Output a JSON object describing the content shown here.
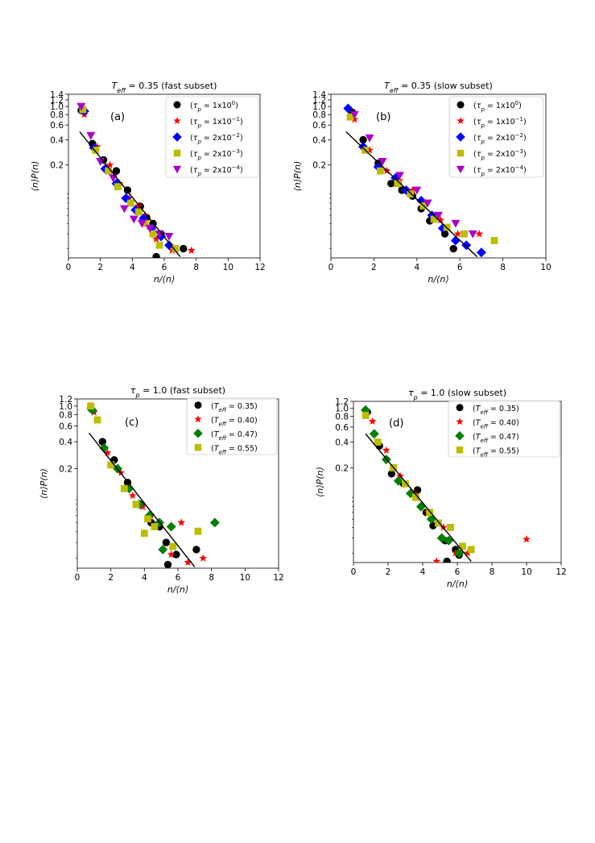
{
  "chart_data": [
    {
      "type": "scatter",
      "title": "T_eff = 0.35 (fast subset)",
      "title_parts": [
        "T",
        "eff",
        " = 0.35 (fast subset)"
      ],
      "panel_label": "(a)",
      "xlabel": "n/⟨n⟩",
      "ylabel": "⟨n⟩P(n)",
      "xlim": [
        0,
        12
      ],
      "ylim": [
        0.0155,
        1.4
      ],
      "yscale": "log",
      "xticks": [
        0,
        2,
        4,
        6,
        8,
        10,
        12
      ],
      "xticklabels": [
        "0",
        "2",
        "4",
        "6",
        "8",
        "10",
        "12"
      ],
      "yticks": [
        0.2,
        0.4,
        0.6,
        0.8,
        1.0,
        1.2,
        1.4
      ],
      "yticklabels": [
        "0.2",
        "0.4",
        "0.6",
        "0.8",
        "1.0",
        "1.2",
        "1.4"
      ],
      "legend_position": "top-right",
      "fit_line": {
        "x": [
          0.7,
          7.0
        ],
        "y": [
          0.5,
          0.016
        ]
      },
      "series": [
        {
          "name": "(τp=1x10^0)",
          "legend": [
            "(",
            "τ",
            "p",
            " = 1x10",
            "0",
            ")"
          ],
          "marker": "circle",
          "color": "#000000",
          "x": [
            0.8,
            1.5,
            2.2,
            3.0,
            3.7,
            4.5,
            4.9,
            5.3,
            5.8,
            7.2,
            5.5
          ],
          "y": [
            0.9,
            0.36,
            0.23,
            0.17,
            0.1,
            0.064,
            0.047,
            0.04,
            0.03,
            0.02,
            0.016
          ]
        },
        {
          "name": "(τp=1x10^-1)",
          "legend": [
            "(",
            "τ",
            "p",
            " = 1x10",
            "−1",
            ")"
          ],
          "marker": "star",
          "color": "#ff0000",
          "x": [
            1.0,
            1.8,
            2.6,
            3.2,
            3.8,
            4.4,
            4.8,
            5.2,
            5.5,
            6.5,
            7.7
          ],
          "y": [
            0.8,
            0.33,
            0.2,
            0.12,
            0.08,
            0.065,
            0.05,
            0.034,
            0.026,
            0.019,
            0.019
          ]
        },
        {
          "name": "(τp=2x10^-2)",
          "legend": [
            "(",
            "τ",
            "p",
            " = 2x10",
            "−2",
            ")"
          ],
          "marker": "diamond",
          "color": "#0000ff",
          "x": [
            1.0,
            1.6,
            2.3,
            3.0,
            3.6,
            4.2,
            4.7,
            5.2,
            5.8,
            6.3
          ],
          "y": [
            0.88,
            0.32,
            0.18,
            0.12,
            0.08,
            0.058,
            0.046,
            0.035,
            0.028,
            0.022
          ]
        },
        {
          "name": "(τp=2x10^-3)",
          "legend": [
            "(",
            "τ",
            "p",
            " = 2x10",
            "−3",
            ")"
          ],
          "marker": "square",
          "color": "#bcbd00",
          "x": [
            0.9,
            1.7,
            2.5,
            3.1,
            3.9,
            4.4,
            4.8,
            5.3,
            5.7,
            6.7
          ],
          "y": [
            0.92,
            0.3,
            0.17,
            0.11,
            0.07,
            0.055,
            0.04,
            0.03,
            0.022,
            0.02
          ]
        },
        {
          "name": "(τp=2x10^-4)",
          "legend": [
            "(",
            "τ",
            "p",
            " = 2x10",
            "−4",
            ")"
          ],
          "marker": "triangle-down",
          "color": "#aa00cc",
          "x": [
            0.8,
            1.4,
            2.0,
            2.8,
            3.5,
            4.1,
            4.6,
            5.1,
            5.7,
            6.3
          ],
          "y": [
            1.0,
            0.45,
            0.22,
            0.14,
            0.06,
            0.045,
            0.04,
            0.035,
            0.03,
            0.028
          ]
        }
      ]
    },
    {
      "type": "scatter",
      "title": "T_eff = 0.35 (slow subset)",
      "title_parts": [
        "T",
        "eff",
        " = 0.35 (slow subset)"
      ],
      "panel_label": "(b)",
      "xlabel": "n/⟨n⟩",
      "ylabel": "⟨n⟩P(n)",
      "xlim": [
        0,
        10
      ],
      "ylim": [
        0.0155,
        1.4
      ],
      "yscale": "log",
      "xticks": [
        0,
        2,
        4,
        6,
        8,
        10
      ],
      "xticklabels": [
        "0",
        "2",
        "4",
        "6",
        "8",
        "10"
      ],
      "yticks": [
        0.2,
        0.4,
        0.6,
        0.8,
        1.0,
        1.2,
        1.4
      ],
      "yticklabels": [
        "0.2",
        "0.4",
        "0.6",
        "0.8",
        "1.0",
        "1.2",
        "1.4"
      ],
      "legend_position": "top-right",
      "fit_line": {
        "x": [
          0.7,
          6.8
        ],
        "y": [
          0.5,
          0.016
        ]
      },
      "series": [
        {
          "name": "(τp=1x10^0)",
          "legend": [
            "(",
            "τ",
            "p",
            " = 1x10",
            "0",
            ")"
          ],
          "marker": "circle",
          "color": "#000000",
          "x": [
            1.0,
            1.5,
            2.2,
            2.8,
            3.3,
            3.8,
            4.2,
            4.6,
            5.3,
            5.7
          ],
          "y": [
            0.85,
            0.4,
            0.21,
            0.12,
            0.1,
            0.085,
            0.06,
            0.043,
            0.03,
            0.02
          ]
        },
        {
          "name": "(τp=1x10^-1)",
          "legend": [
            "(",
            "τ",
            "p",
            " = 1x10",
            "−1",
            ")"
          ],
          "marker": "star",
          "color": "#ff0000",
          "x": [
            1.1,
            1.8,
            2.6,
            3.2,
            3.8,
            4.4,
            5.1,
            5.9,
            6.9
          ],
          "y": [
            0.7,
            0.3,
            0.17,
            0.13,
            0.1,
            0.07,
            0.044,
            0.03,
            0.03
          ]
        },
        {
          "name": "(τp=2x10^-2)",
          "legend": [
            "(",
            "τ",
            "p",
            " = 2x10",
            "−2",
            ")"
          ],
          "marker": "diamond",
          "color": "#0000ff",
          "x": [
            0.8,
            1.5,
            2.2,
            3.0,
            3.5,
            4.2,
            4.7,
            5.2,
            5.8,
            6.3,
            7.0
          ],
          "y": [
            0.95,
            0.33,
            0.19,
            0.14,
            0.1,
            0.075,
            0.05,
            0.035,
            0.025,
            0.022,
            0.018
          ]
        },
        {
          "name": "(τp=2x10^-3)",
          "legend": [
            "(",
            "τ",
            "p",
            " = 2x10",
            "−3",
            ")"
          ],
          "marker": "square",
          "color": "#bcbd00",
          "x": [
            0.9,
            1.6,
            2.3,
            3.1,
            3.7,
            4.3,
            4.8,
            5.4,
            6.2,
            7.6
          ],
          "y": [
            0.75,
            0.3,
            0.17,
            0.12,
            0.09,
            0.065,
            0.045,
            0.036,
            0.03,
            0.025
          ]
        },
        {
          "name": "(τp=2x10^-4)",
          "legend": [
            "(",
            "τ",
            "p",
            " = 2x10",
            "−4",
            ")"
          ],
          "marker": "triangle-down",
          "color": "#aa00cc",
          "x": [
            1.1,
            1.8,
            2.4,
            3.2,
            4.0,
            4.5,
            5.0,
            5.8,
            6.6
          ],
          "y": [
            0.8,
            0.42,
            0.22,
            0.15,
            0.1,
            0.07,
            0.05,
            0.04,
            0.03
          ]
        }
      ]
    },
    {
      "type": "scatter",
      "title": "τp = 1.0 (fast subset)",
      "title_parts": [
        "τ",
        "p",
        " = 1.0 (fast subset)"
      ],
      "panel_label": "(c)",
      "xlabel": "n/⟨n⟩",
      "ylabel": "⟨n⟩P(n)",
      "xlim": [
        0,
        12
      ],
      "ylim": [
        0.0155,
        1.2
      ],
      "yscale": "log",
      "xticks": [
        0,
        2,
        4,
        6,
        8,
        10,
        12
      ],
      "xticklabels": [
        "0",
        "2",
        "4",
        "6",
        "8",
        "10",
        "12"
      ],
      "yticks": [
        0.2,
        0.4,
        0.6,
        0.8,
        1.0,
        1.2
      ],
      "yticklabels": [
        "0.2",
        "0.4",
        "0.6",
        "0.8",
        "1.0",
        "1.2"
      ],
      "legend_position": "top-right",
      "fit_line": {
        "x": [
          0.7,
          7.0
        ],
        "y": [
          0.5,
          0.016
        ]
      },
      "series": [
        {
          "name": "(T_eff=0.35)",
          "legend": [
            "(",
            "T",
            "eff",
            " = 0.35",
            "",
            ")"
          ],
          "marker": "circle",
          "color": "#000000",
          "x": [
            0.8,
            1.5,
            2.2,
            3.0,
            3.8,
            4.4,
            4.9,
            5.3,
            5.9,
            7.1,
            5.4
          ],
          "y": [
            0.95,
            0.4,
            0.25,
            0.14,
            0.08,
            0.05,
            0.045,
            0.03,
            0.022,
            0.025,
            0.017
          ]
        },
        {
          "name": "(T_eff=0.40)",
          "legend": [
            "(",
            "T",
            "eff",
            " = 0.40",
            "",
            ")"
          ],
          "marker": "star",
          "color": "#ff0000",
          "x": [
            1.0,
            1.8,
            2.6,
            3.3,
            3.9,
            4.4,
            4.8,
            5.6,
            6.2,
            6.6,
            7.5
          ],
          "y": [
            0.85,
            0.3,
            0.18,
            0.1,
            0.075,
            0.06,
            0.05,
            0.022,
            0.05,
            0.018,
            0.02
          ]
        },
        {
          "name": "(T_eff=0.47)",
          "legend": [
            "(",
            "T",
            "eff",
            " = 0.47",
            "",
            ")"
          ],
          "marker": "diamond",
          "color": "#008000",
          "x": [
            0.9,
            1.6,
            2.4,
            3.1,
            3.7,
            4.3,
            4.9,
            5.6,
            5.1,
            8.2
          ],
          "y": [
            0.9,
            0.34,
            0.2,
            0.12,
            0.08,
            0.06,
            0.05,
            0.045,
            0.025,
            0.05
          ]
        },
        {
          "name": "(T_eff=0.55)",
          "legend": [
            "(",
            "T",
            "eff",
            " = 0.55",
            "",
            ")"
          ],
          "marker": "square",
          "color": "#bcbd00",
          "x": [
            0.8,
            1.2,
            2.0,
            2.8,
            3.5,
            4.2,
            4.0,
            4.6,
            5.7,
            7.2
          ],
          "y": [
            1.0,
            0.7,
            0.22,
            0.12,
            0.08,
            0.055,
            0.038,
            0.045,
            0.027,
            0.04
          ]
        }
      ]
    },
    {
      "type": "scatter",
      "title": "τp = 1.0 (slow subset)",
      "title_parts": [
        "τ",
        "p",
        " = 1.0 (slow subset)"
      ],
      "panel_label": "(d)",
      "xlabel": "n/⟨n⟩",
      "ylabel": "⟨n⟩P(n)",
      "xlim": [
        0,
        12
      ],
      "ylim": [
        0.0155,
        1.2
      ],
      "yscale": "log",
      "xticks": [
        0,
        2,
        4,
        6,
        8,
        10,
        12
      ],
      "xticklabels": [
        "0",
        "2",
        "4",
        "6",
        "8",
        "10",
        "12"
      ],
      "yticks": [
        0.2,
        0.4,
        0.6,
        0.8,
        1.0,
        1.2
      ],
      "yticklabels": [
        "0.2",
        "0.4",
        "0.6",
        "0.8",
        "1.0",
        "1.2"
      ],
      "legend_position": "top-right",
      "fit_line": {
        "x": [
          0.7,
          6.8
        ],
        "y": [
          0.5,
          0.016
        ]
      },
      "series": [
        {
          "name": "(T_eff=0.35)",
          "legend": [
            "(",
            "T",
            "eff",
            " = 0.35",
            "",
            ")"
          ],
          "marker": "circle",
          "color": "#000000",
          "x": [
            0.8,
            1.5,
            2.2,
            2.9,
            3.7,
            4.2,
            4.6,
            5.3,
            5.9,
            6.1,
            5.4
          ],
          "y": [
            0.9,
            0.36,
            0.17,
            0.13,
            0.11,
            0.06,
            0.042,
            0.028,
            0.022,
            0.019,
            0.016
          ]
        },
        {
          "name": "(T_eff=0.40)",
          "legend": [
            "(",
            "T",
            "eff",
            " = 0.40",
            "",
            ")"
          ],
          "marker": "star",
          "color": "#ff0000",
          "x": [
            1.1,
            1.9,
            2.7,
            3.5,
            4.3,
            5.2,
            5.9,
            6.6,
            4.8,
            10.0
          ],
          "y": [
            0.7,
            0.32,
            0.16,
            0.1,
            0.06,
            0.04,
            0.02,
            0.02,
            0.016,
            0.029
          ]
        },
        {
          "name": "(T_eff=0.47)",
          "legend": [
            "(",
            "T",
            "eff",
            " = 0.47",
            "",
            ")"
          ],
          "marker": "diamond",
          "color": "#008000",
          "x": [
            0.7,
            1.2,
            1.9,
            2.6,
            3.3,
            3.9,
            4.5,
            5.1,
            5.5,
            6.1
          ],
          "y": [
            0.95,
            0.5,
            0.25,
            0.14,
            0.1,
            0.07,
            0.05,
            0.03,
            0.028,
            0.02
          ]
        },
        {
          "name": "(T_eff=0.55)",
          "legend": [
            "(",
            "T",
            "eff",
            " = 0.55",
            "",
            ")"
          ],
          "marker": "square",
          "color": "#bcbd00",
          "x": [
            0.7,
            1.4,
            2.3,
            3.0,
            3.6,
            4.4,
            4.9,
            5.6,
            6.3,
            6.8
          ],
          "y": [
            0.82,
            0.4,
            0.2,
            0.13,
            0.09,
            0.06,
            0.045,
            0.04,
            0.024,
            0.022
          ]
        }
      ]
    }
  ]
}
